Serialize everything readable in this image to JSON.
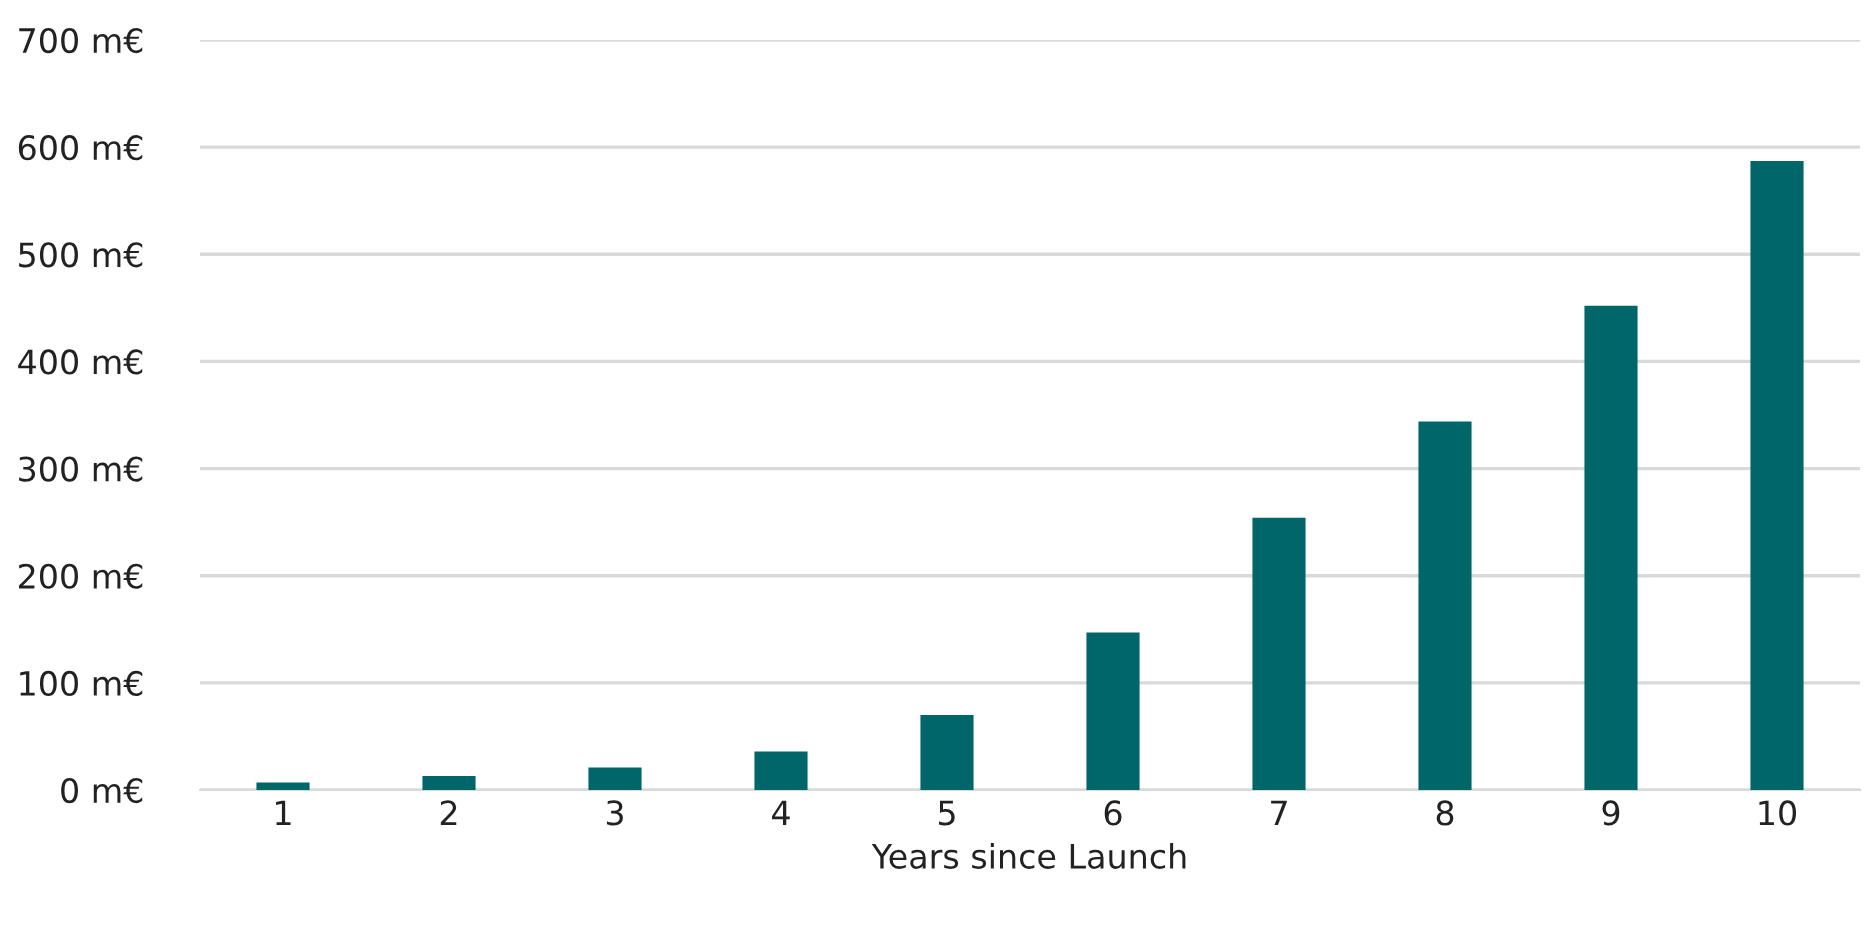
{
  "chart_data": {
    "type": "bar",
    "xlabel": "Years since Launch",
    "categories": [
      "1",
      "2",
      "3",
      "4",
      "5",
      "6",
      "7",
      "8",
      "9",
      "10"
    ],
    "values": [
      7,
      13,
      21,
      36,
      70,
      147,
      254,
      344,
      452,
      587
    ],
    "color": "#006669",
    "ylim": [
      0,
      700
    ],
    "yticks": [
      {
        "value": 0,
        "label": "0 m€"
      },
      {
        "value": 100,
        "label": "100 m€"
      },
      {
        "value": 200,
        "label": "200 m€"
      },
      {
        "value": 300,
        "label": "300 m€"
      },
      {
        "value": 400,
        "label": "400 m€"
      },
      {
        "value": 500,
        "label": "500 m€"
      },
      {
        "value": 600,
        "label": "600 m€"
      },
      {
        "value": 700,
        "label": "700 m€"
      }
    ],
    "grid": "y"
  }
}
